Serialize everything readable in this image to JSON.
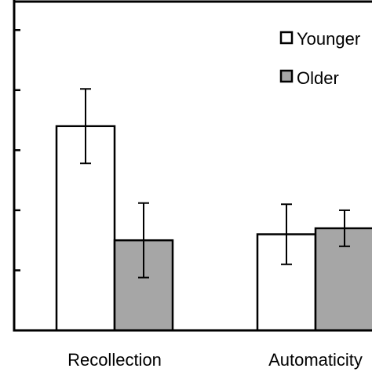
{
  "chart_data": {
    "type": "bar",
    "categories": [
      "Recollection",
      "Automaticity"
    ],
    "series": [
      {
        "name": "Younger",
        "color": "#ffffff",
        "values": [
          0.34,
          0.16
        ],
        "errors": [
          0.062,
          0.05
        ]
      },
      {
        "name": "Older",
        "color": "#a6a6a6",
        "values": [
          0.15,
          0.17
        ],
        "errors": [
          0.062,
          0.03
        ]
      }
    ],
    "ylim": [
      0,
      0.55
    ],
    "yticks": [
      0,
      0.1,
      0.2,
      0.3,
      0.4,
      0.5
    ],
    "show_tick_labels": false,
    "grid": false,
    "legend": "top-right",
    "title": "",
    "xlabel": "",
    "ylabel": ""
  }
}
